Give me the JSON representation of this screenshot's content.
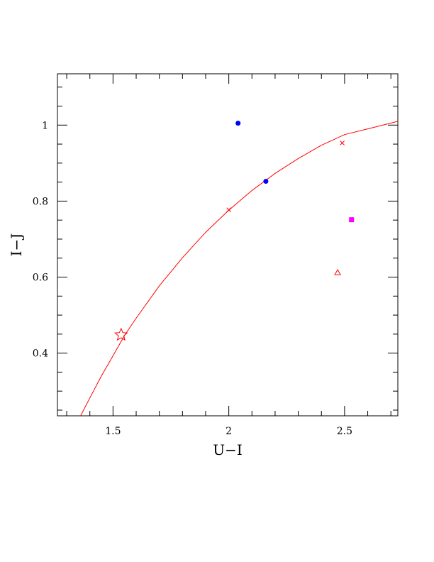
{
  "chart_data": {
    "type": "scatter",
    "xlabel": "U−I",
    "ylabel": "I−J",
    "xlim": [
      1.26,
      2.73
    ],
    "ylim": [
      0.235,
      1.135
    ],
    "x_ticks": [
      1.5,
      2,
      2.5
    ],
    "x_tick_labels": [
      "1.5",
      "2",
      "2.5"
    ],
    "x_minor_step": 0.1,
    "y_ticks": [
      0.4,
      0.6,
      0.8,
      1.0
    ],
    "y_tick_labels": [
      "0.4",
      "0.6",
      "0.8",
      "1"
    ],
    "y_minor_step": 0.05,
    "grid": false,
    "series": [
      {
        "marker": "line",
        "color": "#ff0000",
        "x": [
          1.36,
          1.4,
          1.45,
          1.5,
          1.55,
          1.6,
          1.7,
          1.8,
          1.9,
          2.0,
          2.1,
          2.2,
          2.3,
          2.4,
          2.5,
          2.6,
          2.73
        ],
        "y": [
          0.235,
          0.282,
          0.34,
          0.393,
          0.447,
          0.492,
          0.577,
          0.651,
          0.718,
          0.776,
          0.828,
          0.873,
          0.912,
          0.947,
          0.975,
          0.99,
          1.01
        ]
      },
      {
        "marker": "cross",
        "color": "#ff0000",
        "x": [
          2.0,
          2.49
        ],
        "y": [
          0.777,
          0.953
        ]
      },
      {
        "marker": "star-open",
        "color": "#ff0000",
        "x": [
          1.535
        ],
        "y": [
          0.448
        ]
      },
      {
        "marker": "filled-circle",
        "color": "#0000ff",
        "x": [
          2.04,
          2.16
        ],
        "y": [
          1.005,
          0.852
        ]
      },
      {
        "marker": "filled-square",
        "color": "#ff00ff",
        "x": [
          2.53
        ],
        "y": [
          0.751
        ]
      },
      {
        "marker": "open-triangle",
        "color": "#ff0000",
        "x": [
          2.47
        ],
        "y": [
          0.612
        ]
      }
    ]
  }
}
